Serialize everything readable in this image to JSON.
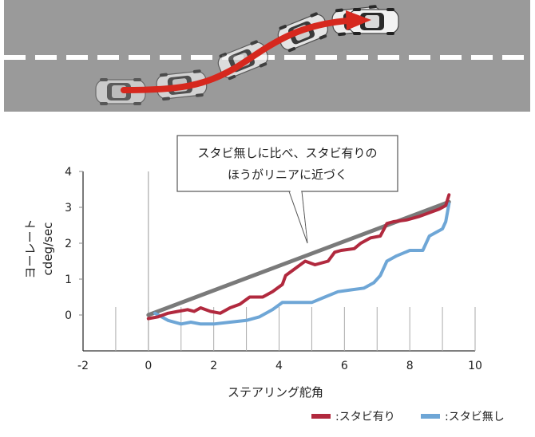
{
  "colors": {
    "road": "#9a9a9a",
    "lane_marking": "#ffffff",
    "path_arrow": "#d6281e",
    "series_with": "#b1293e",
    "series_without": "#6ea6d6",
    "reference": "#7a7a7a",
    "axis": "#333333",
    "tick": "#888888"
  },
  "illustration": {
    "car_count": 6,
    "icon": "car-top-view-icon"
  },
  "chart_data": {
    "type": "line",
    "xlabel": "ステアリング舵角",
    "ylabel": "ヨーレート",
    "yunit": "cdeg/sec",
    "xlim": [
      -2,
      10
    ],
    "ylim": [
      -1,
      4
    ],
    "xticks": [
      "-2",
      "0",
      "2",
      "4",
      "6",
      "8",
      "10"
    ],
    "yticks": [
      "4",
      "3",
      "2",
      "1",
      "0"
    ],
    "annotation": {
      "line1": "スタビ無しに比べ、スタビ有りの",
      "line2": "ほうがリニアに近づく"
    },
    "reference": {
      "x": [
        0,
        9.2
      ],
      "y": [
        0,
        3.15
      ]
    },
    "series": [
      {
        "name": "スタビ有り",
        "x": [
          0,
          0.3,
          0.6,
          0.9,
          1.2,
          1.4,
          1.6,
          1.9,
          2.2,
          2.5,
          2.8,
          3.1,
          3.5,
          3.8,
          4.1,
          4.2,
          4.5,
          4.8,
          5.1,
          5.5,
          5.7,
          5.9,
          6.3,
          6.5,
          6.8,
          7.1,
          7.3,
          7.5,
          7.9,
          8.3,
          8.6,
          8.9,
          9.1,
          9.2
        ],
        "y": [
          -0.1,
          -0.05,
          0.05,
          0.1,
          0.15,
          0.1,
          0.2,
          0.1,
          0.05,
          0.2,
          0.3,
          0.5,
          0.5,
          0.65,
          0.85,
          1.1,
          1.3,
          1.5,
          1.4,
          1.5,
          1.75,
          1.8,
          1.85,
          2.0,
          2.15,
          2.2,
          2.55,
          2.6,
          2.65,
          2.75,
          2.85,
          2.95,
          3.05,
          3.35
        ]
      },
      {
        "name": "スタビ無し",
        "x": [
          0.2,
          0.6,
          1.0,
          1.3,
          1.6,
          2.0,
          2.5,
          3.0,
          3.4,
          3.8,
          4.1,
          4.5,
          5.0,
          5.4,
          5.8,
          6.2,
          6.6,
          6.9,
          7.1,
          7.3,
          7.6,
          8.0,
          8.4,
          8.6,
          8.8,
          9.0,
          9.1,
          9.2
        ],
        "y": [
          0.05,
          -0.15,
          -0.25,
          -0.2,
          -0.25,
          -0.25,
          -0.2,
          -0.15,
          -0.05,
          0.15,
          0.35,
          0.35,
          0.35,
          0.5,
          0.65,
          0.7,
          0.75,
          0.9,
          1.1,
          1.5,
          1.65,
          1.8,
          1.8,
          2.2,
          2.3,
          2.4,
          2.6,
          3.1
        ]
      }
    ]
  }
}
